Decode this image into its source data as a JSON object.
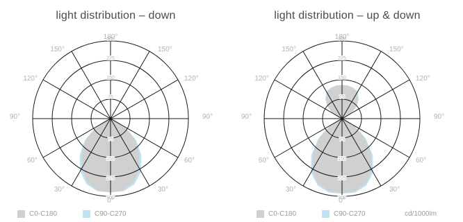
{
  "colors": {
    "c0_c180": "#d0d0d0",
    "c90_c270": "#bfe3f5",
    "grid": "#1a1a1a",
    "label": "#b3b3b3"
  },
  "units": "cd/1000lm",
  "chart_data": [
    {
      "type": "polar",
      "title": "light distribution – down",
      "radial_ticks": [
        75,
        150,
        225,
        300
      ],
      "rlim": [
        0,
        300
      ],
      "angle_labels": [
        "180°",
        "150°",
        "150°",
        "120°",
        "120°",
        "90°",
        "90°",
        "60°",
        "60°",
        "30°",
        "30°",
        "0°"
      ],
      "legend": [
        "C0-C180",
        "C90-C270"
      ],
      "series": [
        {
          "name": "C0-C180",
          "angles": [
            0,
            10,
            20,
            30,
            40,
            50,
            60,
            70,
            80,
            90
          ],
          "values": [
            285,
            282,
            262,
            222,
            170,
            120,
            60,
            20,
            5,
            0
          ]
        },
        {
          "name": "C90-C270",
          "angles": [
            0,
            10,
            20,
            30,
            40,
            50,
            60,
            70,
            80,
            90
          ],
          "values": [
            285,
            285,
            270,
            235,
            185,
            130,
            65,
            22,
            5,
            0
          ]
        }
      ]
    },
    {
      "type": "polar",
      "title": "light distribution – up & down",
      "radial_ticks": [
        75,
        150,
        225,
        300
      ],
      "rlim": [
        0,
        300
      ],
      "angle_labels": [
        "180°",
        "150°",
        "150°",
        "120°",
        "120°",
        "90°",
        "90°",
        "60°",
        "60°",
        "30°",
        "30°",
        "0°"
      ],
      "legend": [
        "C0-C180",
        "C90-C270"
      ],
      "series": [
        {
          "name": "C0-C180",
          "angles": [
            0,
            10,
            20,
            30,
            40,
            50,
            60,
            70,
            80,
            90,
            100,
            110,
            120,
            130,
            140,
            150,
            160,
            170,
            180
          ],
          "values": [
            288,
            285,
            268,
            230,
            175,
            110,
            50,
            15,
            3,
            0,
            3,
            15,
            40,
            70,
            95,
            115,
            125,
            130,
            130
          ]
        },
        {
          "name": "C90-C270",
          "angles": [
            0,
            10,
            20,
            30,
            40,
            50,
            60,
            70,
            80,
            90,
            100,
            110,
            120,
            130,
            140,
            150,
            160,
            170,
            180
          ],
          "values": [
            290,
            290,
            275,
            240,
            185,
            120,
            55,
            18,
            4,
            0,
            4,
            18,
            45,
            75,
            100,
            120,
            128,
            130,
            130
          ]
        }
      ]
    }
  ]
}
